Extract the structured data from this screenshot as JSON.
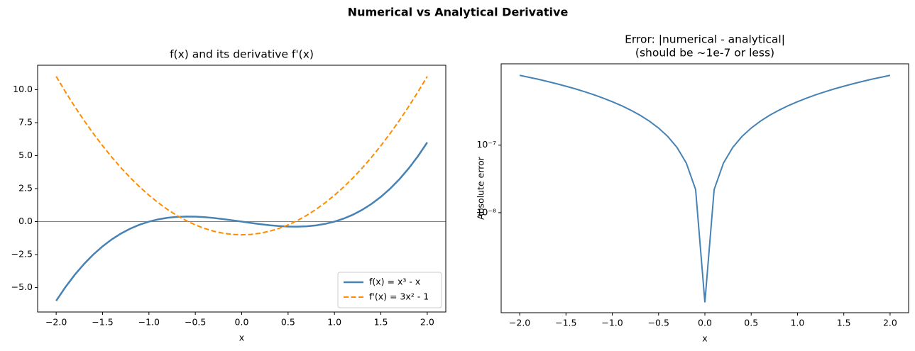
{
  "title": "Numerical vs Analytical Derivative",
  "chart_data": [
    {
      "type": "line",
      "title": "f(x) and its derivative f'(x)",
      "xlabel": "x",
      "x": [
        -2,
        -1.9,
        -1.8,
        -1.7,
        -1.6,
        -1.5,
        -1.4,
        -1.3,
        -1.2,
        -1.1,
        -1,
        -0.9,
        -0.8,
        -0.7,
        -0.6,
        -0.5,
        -0.4,
        -0.3,
        -0.2,
        -0.1,
        0,
        0.1,
        0.2,
        0.3,
        0.4,
        0.5,
        0.6,
        0.7,
        0.8,
        0.9,
        1,
        1.1,
        1.2,
        1.3,
        1.4,
        1.5,
        1.6,
        1.7,
        1.8,
        1.9,
        2
      ],
      "series": [
        {
          "name": "f(x) = x³ - x",
          "color": "#4682b4",
          "linestyle": "solid",
          "linewidth": 2.5,
          "values": [
            -6,
            -4.959,
            -4.032,
            -3.213,
            -2.496,
            -1.875,
            -1.344,
            -0.897,
            -0.528,
            -0.231,
            0,
            0.171,
            0.288,
            0.357,
            0.384,
            0.375,
            0.336,
            0.273,
            0.192,
            0.099,
            0,
            -0.099,
            -0.192,
            -0.273,
            -0.336,
            -0.375,
            -0.384,
            -0.357,
            -0.288,
            -0.171,
            0,
            0.231,
            0.528,
            0.897,
            1.344,
            1.875,
            2.496,
            3.213,
            4.032,
            4.959,
            6
          ]
        },
        {
          "name": "f'(x) = 3x² - 1",
          "color": "#ff8c00",
          "linestyle": "dashed",
          "linewidth": 2,
          "values": [
            11,
            9.83,
            8.72,
            7.67,
            6.68,
            5.75,
            4.88,
            4.07,
            3.32,
            2.63,
            2,
            1.43,
            0.92,
            0.47,
            0.08,
            -0.25,
            -0.52,
            -0.73,
            -0.88,
            -0.97,
            -1,
            -0.97,
            -0.88,
            -0.73,
            -0.52,
            -0.25,
            0.08,
            0.47,
            0.92,
            1.43,
            2,
            2.63,
            3.32,
            4.07,
            4.88,
            5.75,
            6.68,
            7.67,
            8.72,
            9.83,
            11
          ]
        }
      ],
      "hline": 0,
      "hline_color": "#808080",
      "xlim": [
        -2.2,
        2.2
      ],
      "ylim": [
        -6.85,
        11.85
      ],
      "xticks": [
        {
          "value": -2,
          "label": "−2.0"
        },
        {
          "value": -1.5,
          "label": "−1.5"
        },
        {
          "value": -1,
          "label": "−1.0"
        },
        {
          "value": -0.5,
          "label": "−0.5"
        },
        {
          "value": 0,
          "label": "0.0"
        },
        {
          "value": 0.5,
          "label": "0.5"
        },
        {
          "value": 1,
          "label": "1.0"
        },
        {
          "value": 1.5,
          "label": "1.5"
        },
        {
          "value": 2,
          "label": "2.0"
        }
      ],
      "yticks": [
        {
          "value": -5,
          "label": "−5.0"
        },
        {
          "value": -2.5,
          "label": "−2.5"
        },
        {
          "value": 0,
          "label": "0.0"
        },
        {
          "value": 2.5,
          "label": "2.5"
        },
        {
          "value": 5,
          "label": "5.0"
        },
        {
          "value": 7.5,
          "label": "7.5"
        },
        {
          "value": 10,
          "label": "10.0"
        }
      ],
      "legend": "lower right"
    },
    {
      "type": "line",
      "title": "Error: |numerical - analytical|",
      "subtitle": "(should be ~1e-7 or less)",
      "xlabel": "x",
      "ylabel": "Absolute error",
      "yscale": "log",
      "x": [
        -2,
        -1.9,
        -1.8,
        -1.7,
        -1.6,
        -1.5,
        -1.4,
        -1.3,
        -1.2,
        -1.1,
        -1,
        -0.9,
        -0.8,
        -0.7,
        -0.6,
        -0.5,
        -0.4,
        -0.3,
        -0.2,
        -0.1,
        0,
        0.1,
        0.2,
        0.3,
        0.4,
        0.5,
        0.6,
        0.7,
        0.8,
        0.9,
        1,
        1.1,
        1.2,
        1.3,
        1.4,
        1.5,
        1.6,
        1.7,
        1.8,
        1.9,
        2
      ],
      "series": [
        {
          "color": "#4682b4",
          "linestyle": "solid",
          "linewidth": 2,
          "values": [
            1.08e-06,
            1.01e-06,
            9.45e-07,
            8.77e-07,
            8.1e-07,
            7.45e-07,
            6.82e-07,
            6.19e-07,
            5.58e-07,
            4.98e-07,
            4.4e-07,
            3.84e-07,
            3.29e-07,
            2.77e-07,
            2.27e-07,
            1.79e-07,
            1.34e-07,
            9.2e-08,
            5.4e-08,
            2.2e-08,
            4.7e-10,
            2.2e-08,
            5.4e-08,
            9.2e-08,
            1.34e-07,
            1.79e-07,
            2.27e-07,
            2.77e-07,
            3.29e-07,
            3.84e-07,
            4.4e-07,
            4.98e-07,
            5.58e-07,
            6.19e-07,
            6.82e-07,
            7.45e-07,
            8.1e-07,
            8.77e-07,
            9.45e-07,
            1.01e-06,
            1.08e-06
          ]
        }
      ],
      "xlim": [
        -2.2,
        2.2
      ],
      "ylim": [
        3.3e-10,
        1.6e-06
      ],
      "xticks": [
        {
          "value": -2,
          "label": "−2.0"
        },
        {
          "value": -1.5,
          "label": "−1.5"
        },
        {
          "value": -1,
          "label": "−1.0"
        },
        {
          "value": -0.5,
          "label": "−0.5"
        },
        {
          "value": 0,
          "label": "0.0"
        },
        {
          "value": 0.5,
          "label": "0.5"
        },
        {
          "value": 1,
          "label": "1.0"
        },
        {
          "value": 1.5,
          "label": "1.5"
        },
        {
          "value": 2,
          "label": "2.0"
        }
      ],
      "yticks": [
        {
          "value": 1e-08,
          "label": "10⁻⁸"
        },
        {
          "value": 1e-07,
          "label": "10⁻⁷"
        }
      ]
    }
  ]
}
